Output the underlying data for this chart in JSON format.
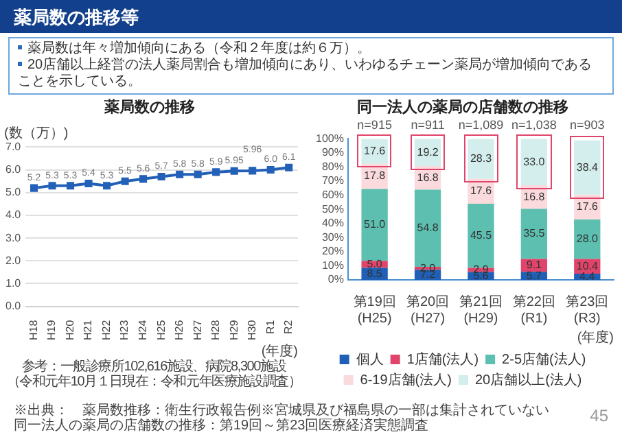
{
  "chart_data": [
    {
      "type": "other",
      "title": "薬局数の推移等",
      "annotations": [
        "薬局数は年々増加傾向にある（令和２年度は約６万）。",
        "20店舗以上経営の法人薬局割合も増加傾向にあり、いわゆるチェーン薬局が増加傾向であることを示している。"
      ]
    },
    {
      "type": "line",
      "title": "薬局数の推移",
      "ylabel": "(数（万）)",
      "xlabel": "(年度)",
      "categories": [
        "H18",
        "H19",
        "H20",
        "H21",
        "H22",
        "H23",
        "H24",
        "H25",
        "H26",
        "H27",
        "H28",
        "H29",
        "H30",
        "R1",
        "R2"
      ],
      "series": [
        {
          "color": "#2360b8",
          "values": [
            5.2,
            5.3,
            5.3,
            5.4,
            5.3,
            5.5,
            5.6,
            5.7,
            5.8,
            5.8,
            5.9,
            5.95,
            5.96,
            6.0,
            6.1
          ],
          "value_labels": [
            "5.2",
            "5.3",
            "5.3",
            "5.4",
            "5.3",
            "5.5",
            "5.6",
            "5.7",
            "5.8",
            "5.8",
            "5.9",
            "5.95",
            "5.96",
            "6.0",
            "6.1"
          ]
        }
      ],
      "ylim": [
        0,
        7
      ],
      "yticks": [
        {
          "value": 0,
          "label": "0.0"
        },
        {
          "value": 1,
          "label": "1.0"
        },
        {
          "value": 2,
          "label": "2.0"
        },
        {
          "value": 3,
          "label": "3.0"
        },
        {
          "value": 4,
          "label": "4.0"
        },
        {
          "value": 5,
          "label": "5.0"
        },
        {
          "value": 6,
          "label": "6.0"
        },
        {
          "value": 7,
          "label": "7.0"
        }
      ],
      "grid": "y",
      "marker": "square",
      "line_style": "solid",
      "annotations": [
        "参考：一般診療所102,616施設、病院8,300施設",
        "（令和元年10月１日現在：令和元年医療施設調査）"
      ]
    },
    {
      "type": "bar",
      "stacked": true,
      "title": "同一法人の薬局の店舗数の推移",
      "xlabel": "(年度)",
      "categories": [
        "第19回(H25)",
        "第20回(H27)",
        "第21回(H29)",
        "第22回(R1)",
        "第23回(R3)"
      ],
      "series": [
        {
          "name": "個人",
          "color": "#1f5fb5",
          "values": [
            8.5,
            7.2,
            5.6,
            5.7,
            4.4
          ],
          "value_labels": [
            "8.5",
            "7.2",
            "5.6",
            "5.7",
            "4.4"
          ]
        },
        {
          "name": "1店舗(法人)",
          "color": "#e0446a",
          "values": [
            5.0,
            2.0,
            2.9,
            9.1,
            10.4
          ],
          "value_labels": [
            "5.0",
            "2.0",
            "2.9",
            "9.1",
            "10.4"
          ]
        },
        {
          "name": "2-5店舗(法人)",
          "color": "#5cbfb0",
          "values": [
            51.0,
            54.8,
            45.5,
            35.5,
            28.0
          ],
          "value_labels": [
            "51.0",
            "54.8",
            "45.5",
            "35.5",
            "28.0"
          ]
        },
        {
          "name": "6-19店舗(法人)",
          "color": "#fadadd",
          "values": [
            17.8,
            16.8,
            17.6,
            16.8,
            17.6
          ],
          "value_labels": [
            "17.8",
            "16.8",
            "17.6",
            "16.8",
            "17.6"
          ]
        },
        {
          "name": "20店舗以上(法人)",
          "color": "#d3eeec",
          "values": [
            17.6,
            19.2,
            28.3,
            33.0,
            38.4
          ],
          "value_labels": [
            "17.6",
            "19.2",
            "28.3",
            "33.0",
            "38.4"
          ]
        }
      ],
      "ylim": [
        0,
        100
      ],
      "yticks": [
        {
          "value": 0,
          "label": "0%"
        },
        {
          "value": 10,
          "label": "10%"
        },
        {
          "value": 20,
          "label": "20%"
        },
        {
          "value": 30,
          "label": "30%"
        },
        {
          "value": 40,
          "label": "40%"
        },
        {
          "value": 50,
          "label": "50%"
        },
        {
          "value": 60,
          "label": "60%"
        },
        {
          "value": 70,
          "label": "70%"
        },
        {
          "value": 80,
          "label": "80%"
        },
        {
          "value": 90,
          "label": "90%"
        },
        {
          "value": 100,
          "label": "100%"
        }
      ],
      "grid": false,
      "legend": "bottom",
      "annotations": [
        "n=915",
        "n=911",
        "n=1,089",
        "n=1,038",
        "n=903"
      ]
    },
    {
      "type": "other",
      "annotations": [
        "※出典：　薬局数推移：衛生行政報告例※宮城県及び福島県の一部は集計されていない",
        "同一法人の薬局の店舗数の推移：第19回～第23回医療経済実態調査",
        "45"
      ]
    }
  ]
}
